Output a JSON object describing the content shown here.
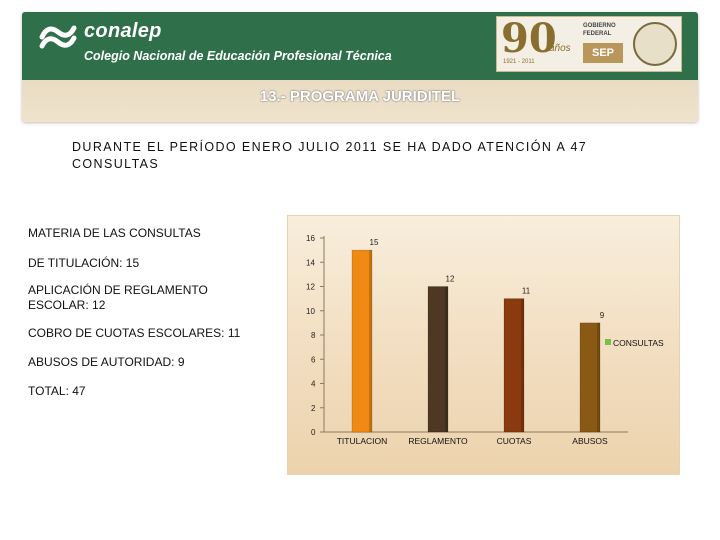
{
  "header": {
    "logo_word": "conalep",
    "logo_subtitle": "Colegio Nacional de Educación Profesional Técnica",
    "seal_number": "90",
    "seal_anos": "años",
    "seal_years": "1921 - 2011",
    "seal_gobierno": "GOBIERNO FEDERAL",
    "seal_sep": "SEP"
  },
  "section_title": "13.- PROGRAMA JURIDITEL",
  "intro_text": "DURANTE EL PERÍODO ENERO JULIO 2011 SE HA DADO ATENCIÓN A 47 CONSULTAS",
  "summary": {
    "heading": "MATERIA DE  LAS CONSULTAS",
    "titulacion": "DE TITULACIÓN:  15",
    "reglamento": "APLICACIÓN DE REGLAMENTO ESCOLAR: 12",
    "cuotas": "COBRO DE CUOTAS ESCOLARES: 11",
    "abusos": "ABUSOS DE AUTORIDAD: 9",
    "total": "TOTAL: 47"
  },
  "colors": {
    "banner_green": "#2f6f4a",
    "bar_titulacion": "#f08a14",
    "bar_reglamento": "#4e3824",
    "bar_cuotas": "#8a3a0e",
    "bar_abusos": "#8a5a14",
    "legend": "#7bbf4a"
  },
  "chart_data": {
    "type": "bar",
    "categories": [
      "TITULACION",
      "REGLAMENTO",
      "CUOTAS",
      "ABUSOS"
    ],
    "series": [
      {
        "name": "CONSULTAS",
        "values": [
          15,
          12,
          11,
          9
        ]
      }
    ],
    "ylim": [
      0,
      16
    ],
    "yticks": [
      0,
      2,
      4,
      6,
      8,
      10,
      12,
      14,
      16
    ],
    "legend": "right",
    "grid": false
  }
}
